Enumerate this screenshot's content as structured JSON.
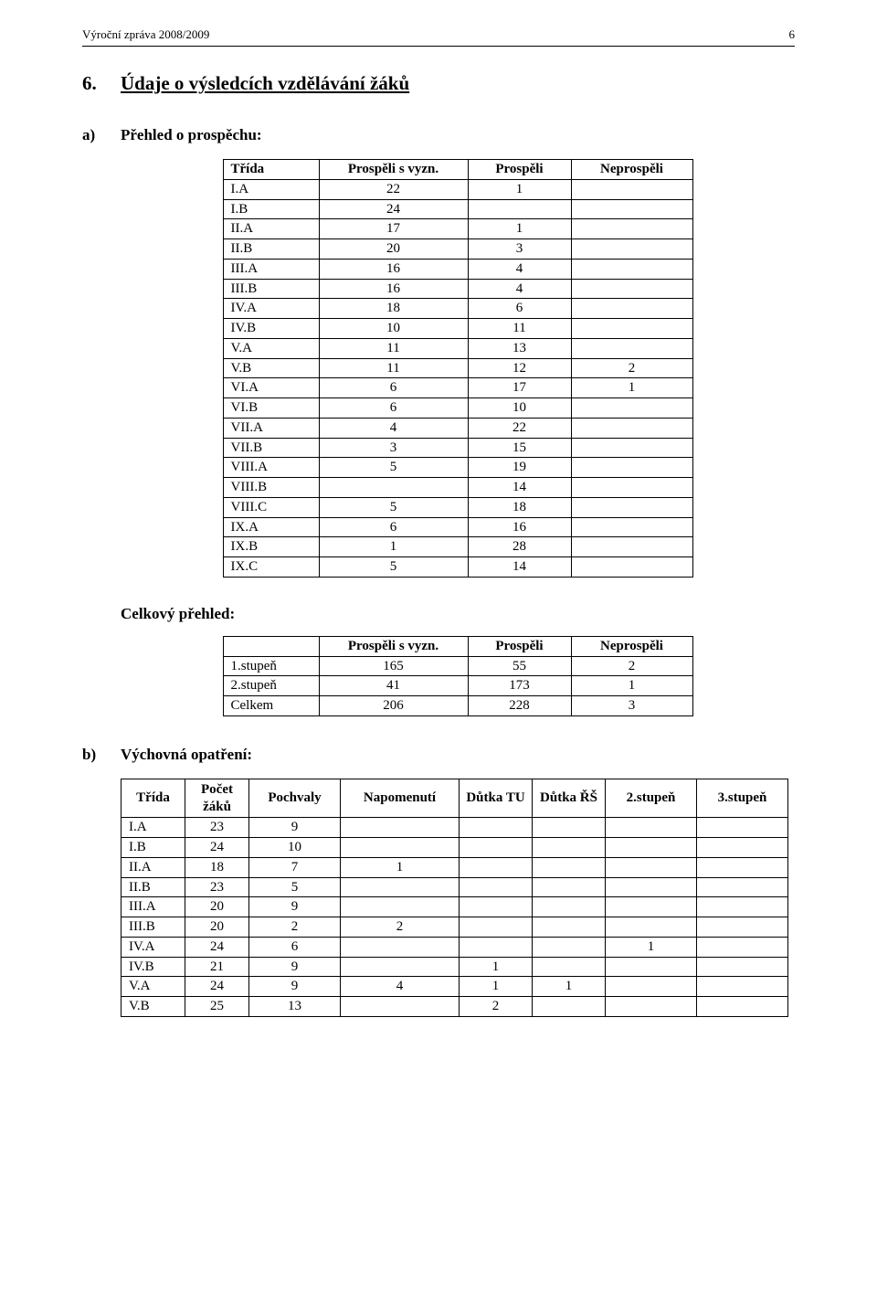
{
  "header": {
    "left": "Výroční zpráva 2008/2009",
    "page_number": "6"
  },
  "section": {
    "number": "6.",
    "title": "Údaje o výsledcích vzdělávání žáků"
  },
  "sub_a": {
    "label": "a)",
    "title": "Přehled o prospěchu:"
  },
  "prospech_table": {
    "type": "table",
    "columns": [
      "Třída",
      "Prospěli s vyzn.",
      "Prospěli",
      "Neprospěli"
    ],
    "rows": [
      [
        "I.A",
        "22",
        "1",
        ""
      ],
      [
        "I.B",
        "24",
        "",
        ""
      ],
      [
        "II.A",
        "17",
        "1",
        ""
      ],
      [
        "II.B",
        "20",
        "3",
        ""
      ],
      [
        "III.A",
        "16",
        "4",
        ""
      ],
      [
        "III.B",
        "16",
        "4",
        ""
      ],
      [
        "IV.A",
        "18",
        "6",
        ""
      ],
      [
        "IV.B",
        "10",
        "11",
        ""
      ],
      [
        "V.A",
        "11",
        "13",
        ""
      ],
      [
        "V.B",
        "11",
        "12",
        "2"
      ],
      [
        "VI.A",
        "6",
        "17",
        "1"
      ],
      [
        "VI.B",
        "6",
        "10",
        ""
      ],
      [
        "VII.A",
        "4",
        "22",
        ""
      ],
      [
        "VII.B",
        "3",
        "15",
        ""
      ],
      [
        "VIII.A",
        "5",
        "19",
        ""
      ],
      [
        "VIII.B",
        "",
        "14",
        ""
      ],
      [
        "VIII.C",
        "5",
        "18",
        ""
      ],
      [
        "IX.A",
        "6",
        "16",
        ""
      ],
      [
        "IX.B",
        "1",
        "28",
        ""
      ],
      [
        "IX.C",
        "5",
        "14",
        ""
      ]
    ]
  },
  "celkovy": {
    "label": "Celkový přehled:"
  },
  "celkovy_table": {
    "type": "table",
    "columns": [
      "",
      "Prospěli s vyzn.",
      "Prospěli",
      "Neprospěli"
    ],
    "rows": [
      [
        "1.stupeň",
        "165",
        "55",
        "2"
      ],
      [
        "2.stupeň",
        "41",
        "173",
        "1"
      ],
      [
        "Celkem",
        "206",
        "228",
        "3"
      ]
    ]
  },
  "sub_b": {
    "label": "b)",
    "title": "Výchovná opatření:"
  },
  "vychovna_table": {
    "type": "table",
    "columns": [
      "Třída",
      "Počet žáků",
      "Pochvaly",
      "Napomenutí",
      "Důtka TU",
      "Důtka ŘŠ",
      "2.stupeň",
      "3.stupeň"
    ],
    "rows": [
      [
        "I.A",
        "23",
        "9",
        "",
        "",
        "",
        "",
        ""
      ],
      [
        "I.B",
        "24",
        "10",
        "",
        "",
        "",
        "",
        ""
      ],
      [
        "II.A",
        "18",
        "7",
        "1",
        "",
        "",
        "",
        ""
      ],
      [
        "II.B",
        "23",
        "5",
        "",
        "",
        "",
        "",
        ""
      ],
      [
        "III.A",
        "20",
        "9",
        "",
        "",
        "",
        "",
        ""
      ],
      [
        "III.B",
        "20",
        "2",
        "2",
        "",
        "",
        "",
        ""
      ],
      [
        "IV.A",
        "24",
        "6",
        "",
        "",
        "",
        "1",
        ""
      ],
      [
        "IV.B",
        "21",
        "9",
        "",
        "1",
        "",
        "",
        ""
      ],
      [
        "V.A",
        "24",
        "9",
        "4",
        "1",
        "1",
        "",
        ""
      ],
      [
        "V.B",
        "25",
        "13",
        "",
        "2",
        "",
        "",
        ""
      ]
    ]
  }
}
